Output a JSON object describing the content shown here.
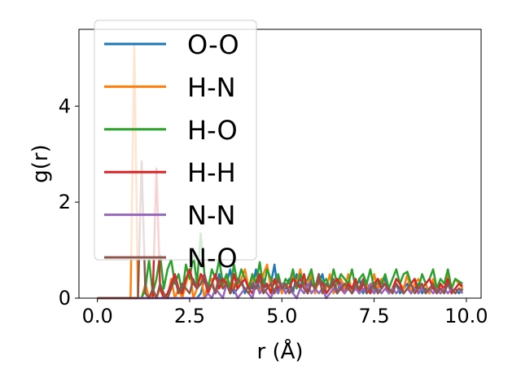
{
  "chart_data": {
    "type": "line",
    "title": "",
    "xlabel": "r (Å)",
    "ylabel": "g(r)",
    "xlim": [
      -0.5,
      10.4
    ],
    "ylim": [
      0,
      5.6
    ],
    "xticks": [
      0.0,
      2.5,
      5.0,
      7.5,
      10.0
    ],
    "xtick_labels": [
      "0.0",
      "2.5",
      "5.0",
      "7.5",
      "10.0"
    ],
    "yticks": [
      0,
      2,
      4
    ],
    "ytick_labels": [
      "0",
      "2",
      "4"
    ],
    "grid": false,
    "legend": "top-left",
    "x": [
      0.0,
      0.1,
      0.2,
      0.3,
      0.4,
      0.5,
      0.6,
      0.7,
      0.8,
      0.9,
      1.0,
      1.1,
      1.2,
      1.3,
      1.4,
      1.5,
      1.6,
      1.7,
      1.8,
      1.9,
      2.0,
      2.1,
      2.2,
      2.3,
      2.4,
      2.5,
      2.6,
      2.7,
      2.8,
      2.9,
      3.0,
      3.1,
      3.2,
      3.3,
      3.4,
      3.5,
      3.6,
      3.7,
      3.8,
      3.9,
      4.0,
      4.1,
      4.2,
      4.3,
      4.4,
      4.5,
      4.6,
      4.7,
      4.8,
      4.9,
      5.0,
      5.1,
      5.2,
      5.3,
      5.4,
      5.5,
      5.6,
      5.7,
      5.8,
      5.9,
      6.0,
      6.1,
      6.2,
      6.3,
      6.4,
      6.5,
      6.6,
      6.7,
      6.8,
      6.9,
      7.0,
      7.1,
      7.2,
      7.3,
      7.4,
      7.5,
      7.6,
      7.7,
      7.8,
      7.9,
      8.0,
      8.1,
      8.2,
      8.3,
      8.4,
      8.5,
      8.6,
      8.7,
      8.8,
      8.9,
      9.0,
      9.1,
      9.2,
      9.3,
      9.4,
      9.5,
      9.6,
      9.7,
      9.8,
      9.9
    ],
    "series": [
      {
        "name": "O-O",
        "color": "#1f77b4",
        "values": [
          0,
          0,
          0,
          0,
          0,
          0,
          0,
          0,
          0,
          0,
          0,
          0,
          0,
          0,
          0,
          0,
          0,
          0,
          0,
          0,
          0,
          0,
          0,
          0,
          0,
          0,
          0,
          0,
          0.1,
          0.4,
          0.2,
          0.3,
          0.1,
          0.5,
          0.2,
          0.3,
          0.6,
          0.1,
          0.2,
          0.4,
          0.1,
          0.3,
          0.2,
          0.6,
          0.1,
          0.4,
          0.2,
          0.3,
          0.7,
          0.1,
          0.3,
          0.2,
          0.4,
          0.1,
          0.5,
          0.2,
          0.3,
          0.1,
          0.4,
          0.2,
          0.3,
          0.5,
          0.1,
          0.2,
          0.3,
          0.1,
          0.4,
          0.2,
          0.3,
          0.1,
          0.2,
          0.4,
          0.1,
          0.3,
          0.2,
          0.1,
          0.3,
          0.2,
          0.4,
          0.1,
          0.2,
          0.3,
          0.1,
          0.2,
          0.3,
          0.1,
          0.2,
          0.3,
          0.1,
          0.2,
          0.1,
          0.3,
          0.2,
          0.1,
          0.2,
          0.3,
          0.1,
          0.2,
          0.1,
          0.2
        ]
      },
      {
        "name": "H-N",
        "color": "#ff7f0e",
        "values": [
          0,
          0,
          0,
          0,
          0,
          0,
          0,
          0,
          0,
          0,
          5.3,
          0,
          0,
          0.3,
          0,
          0.1,
          0,
          0.2,
          0,
          0,
          0.4,
          0,
          0.2,
          0,
          0.3,
          0.6,
          0,
          0.2,
          0.5,
          0,
          0.3,
          0.4,
          0.1,
          0.3,
          0.2,
          0.5,
          0.1,
          0.3,
          0.2,
          0.4,
          0.6,
          0.2,
          0.4,
          0.3,
          0.1,
          0.5,
          0.7,
          0.2,
          0.3,
          0.4,
          0.1,
          0.3,
          0.2,
          0.5,
          0.3,
          0.6,
          0.2,
          0.3,
          0.5,
          0.1,
          0.4,
          0.3,
          0.2,
          0.5,
          0.1,
          0.3,
          0.4,
          0.2,
          0.5,
          0.1,
          0.3,
          0.2,
          0.4,
          0.3,
          0.1,
          0.5,
          0.2,
          0.4,
          0.3,
          0.2,
          0.1,
          0.4,
          0.3,
          0.2,
          0.5,
          0.1,
          0.3,
          0.4,
          0.2,
          0.3,
          0.1,
          0.4,
          0.2,
          0.3,
          0.1,
          0.5,
          0.2,
          0.4,
          0.3,
          0.2
        ]
      },
      {
        "name": "H-O",
        "color": "#2ca02c",
        "values": [
          0,
          0,
          0,
          0,
          0,
          0,
          0,
          0,
          0,
          0,
          0,
          0,
          0,
          0.2,
          0.8,
          0.1,
          0.4,
          0.9,
          0.2,
          0.6,
          0.8,
          0.3,
          0.5,
          0.1,
          0.7,
          0.4,
          0.9,
          0.3,
          1.35,
          0.5,
          0.2,
          0.6,
          0.4,
          0.8,
          0.3,
          0.5,
          0.2,
          0.7,
          0.3,
          0.6,
          0.4,
          0.2,
          0.5,
          0.3,
          0.75,
          0.2,
          0.6,
          0.4,
          0.3,
          0.5,
          0.2,
          0.4,
          0.3,
          0.6,
          0.2,
          0.5,
          0.3,
          0.4,
          0.6,
          0.2,
          0.5,
          0.3,
          0.4,
          0.2,
          0.6,
          0.3,
          0.5,
          0.4,
          0.3,
          0.6,
          0.2,
          0.4,
          0.5,
          0.3,
          0.6,
          0.2,
          0.4,
          0.3,
          0.5,
          0.2,
          0.4,
          0.6,
          0.3,
          0.5,
          0.55,
          0.3,
          0.4,
          0.2,
          0.5,
          0.3,
          0.4,
          0.6,
          0.2,
          0.4,
          0.3,
          0.6,
          0.2,
          0.4,
          0.35,
          0.3
        ]
      },
      {
        "name": "H-H",
        "color": "#d62728",
        "values": [
          0,
          0,
          0,
          0,
          0,
          0,
          0,
          0,
          0,
          0,
          0,
          0,
          0,
          0,
          0,
          0,
          2.7,
          0.2,
          0,
          0.1,
          0.3,
          0.5,
          0.2,
          0.1,
          0.4,
          0.6,
          0.3,
          0.2,
          0.5,
          0.4,
          0.1,
          0.3,
          0.5,
          0.2,
          0.4,
          0.3,
          0.1,
          0.5,
          0.2,
          0.3,
          0.4,
          0.2,
          0.1,
          0.3,
          0.5,
          0.2,
          0.3,
          0.1,
          0.4,
          0.2,
          0.3,
          0.1,
          0.2,
          0.4,
          0.3,
          0.2,
          0.5,
          0.1,
          0.3,
          0.2,
          0.4,
          0.3,
          0.1,
          0.2,
          0.3,
          0.4,
          0.2,
          0.1,
          0.3,
          0.2,
          0.4,
          0.1,
          0.3,
          0.2,
          0.1,
          0.3,
          0.4,
          0.2,
          0.3,
          0.1,
          0.2,
          0.4,
          0.3,
          0.1,
          0.2,
          0.3,
          0.4,
          0.1,
          0.2,
          0.3,
          0.4,
          0.2,
          0.1,
          0.3,
          0.2,
          0.4,
          0.1,
          0.2,
          0.3,
          0.25
        ]
      },
      {
        "name": "N-N",
        "color": "#9467bd",
        "values": [
          0,
          0,
          0,
          0,
          0,
          0,
          0,
          0,
          0,
          0,
          0,
          0,
          0,
          0,
          0,
          0,
          0,
          0,
          0,
          0,
          0,
          0,
          0,
          0,
          0,
          0,
          0,
          0,
          0,
          0,
          0.1,
          0,
          0.2,
          0.1,
          0,
          0.3,
          0.1,
          0.2,
          0,
          0.1,
          0.2,
          0.1,
          0,
          0.3,
          0.1,
          0.2,
          0.1,
          0,
          0.2,
          0.1,
          0.3,
          0.1,
          0.2,
          0.1,
          0,
          0.2,
          0.1,
          0.3,
          0.1,
          0.2,
          0.1,
          0.2,
          0,
          0.1,
          0.2,
          0.1,
          0.3,
          0.1,
          0.2,
          0.1,
          0.2,
          0.1,
          0.2,
          0.1,
          0.3,
          0.1,
          0.2,
          0.1,
          0.2,
          0.1,
          0.2,
          0.1,
          0.2,
          0.1,
          0.2,
          0.1,
          0.2,
          0.1,
          0.2,
          0.1,
          0.2,
          0.1,
          0.2,
          0.1,
          0.2,
          0.1,
          0.2,
          0.1,
          0.2,
          0.1
        ]
      },
      {
        "name": "N-O",
        "color": "#8c564b",
        "values": [
          0,
          0,
          0,
          0,
          0,
          0,
          0,
          0,
          0,
          0,
          0,
          0,
          2.85,
          0.1,
          0,
          0.2,
          0,
          0.3,
          0.1,
          0,
          0.2,
          0.4,
          0.1,
          0.3,
          0.2,
          0.1,
          0.4,
          0.2,
          0.3,
          0.5,
          0.2,
          0.3,
          0.1,
          0.4,
          0.2,
          0.3,
          0.1,
          0.2,
          0.4,
          0.3,
          0.2,
          0.1,
          0.3,
          0.2,
          0.4,
          0.1,
          0.2,
          0.3,
          0.1,
          0.4,
          0.2,
          0.3,
          0.1,
          0.2,
          0.3,
          0.4,
          0.2,
          0.1,
          0.3,
          0.2,
          0.5,
          0.1,
          0.3,
          0.2,
          0.4,
          0.1,
          0.2,
          0.3,
          0.2,
          0.1,
          0.3,
          0.2,
          0.4,
          0.1,
          0.2,
          0.3,
          0.1,
          0.2,
          0.3,
          0.2,
          0.1,
          0.3,
          0.2,
          0.1,
          0.2,
          0.3,
          0.1,
          0.2,
          0.3,
          0.1,
          0.2,
          0.3,
          0.1,
          0.2,
          0.1,
          0.3,
          0.2,
          0.1,
          0.2,
          0.15
        ]
      }
    ]
  }
}
